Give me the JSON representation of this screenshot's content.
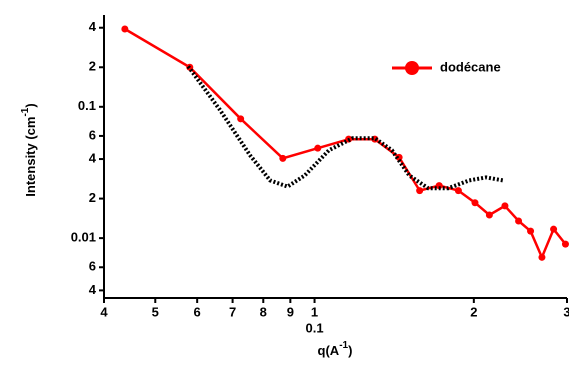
{
  "chart_data": {
    "type": "line",
    "log_x": true,
    "log_y": true,
    "x_label": [
      "q(A",
      "-1",
      ")"
    ],
    "y_label": [
      "Intensity (cm",
      "-1",
      ")"
    ],
    "x_annotation": "0.1",
    "xlim": [
      0.04,
      0.3
    ],
    "ylim": [
      0.0035,
      0.5
    ],
    "xticks": [
      {
        "value": 0.04,
        "label": "4"
      },
      {
        "value": 0.05,
        "label": "5"
      },
      {
        "value": 0.06,
        "label": "6"
      },
      {
        "value": 0.07,
        "label": "7"
      },
      {
        "value": 0.08,
        "label": "8"
      },
      {
        "value": 0.09,
        "label": "9"
      },
      {
        "value": 0.1,
        "label": "1"
      },
      {
        "value": 0.2,
        "label": "2"
      },
      {
        "value": 0.3,
        "label": "3"
      }
    ],
    "yticks": [
      {
        "value": 0.004,
        "label": "4"
      },
      {
        "value": 0.006,
        "label": "6"
      },
      0.01,
      {
        "value": 0.02,
        "label": "2"
      },
      {
        "value": 0.04,
        "label": "4"
      },
      {
        "value": 0.06,
        "label": "6"
      },
      0.1,
      {
        "value": 0.2,
        "label": "2"
      },
      {
        "value": 0.4,
        "label": "4"
      }
    ],
    "legend_position": "upper right",
    "series": [
      {
        "name": "dodécane",
        "color": "#ff0000",
        "style": "solid-markers",
        "x": [
          0.0438,
          0.0581,
          0.0725,
          0.0871,
          0.1014,
          0.116,
          0.13,
          0.1445,
          0.158,
          0.172,
          0.187,
          0.201,
          0.214,
          0.229,
          0.243,
          0.256,
          0.269,
          0.283,
          0.298
        ],
        "values": [
          0.391,
          0.2,
          0.081,
          0.0405,
          0.0484,
          0.0567,
          0.0567,
          0.0412,
          0.023,
          0.0251,
          0.023,
          0.0186,
          0.015,
          0.0176,
          0.0135,
          0.0113,
          0.00714,
          0.0117,
          0.009
        ]
      },
      {
        "color": "#000000",
        "style": "dotted",
        "x": [
          0.0577,
          0.0662,
          0.0755,
          0.0824,
          0.0889,
          0.0958,
          0.1065,
          0.118,
          0.13,
          0.14,
          0.151,
          0.164,
          0.179,
          0.196,
          0.211,
          0.227
        ],
        "values": [
          0.203,
          0.095,
          0.0428,
          0.0275,
          0.0247,
          0.03,
          0.0467,
          0.0577,
          0.0577,
          0.0467,
          0.03,
          0.024,
          0.024,
          0.0275,
          0.029,
          0.0275
        ]
      }
    ]
  }
}
